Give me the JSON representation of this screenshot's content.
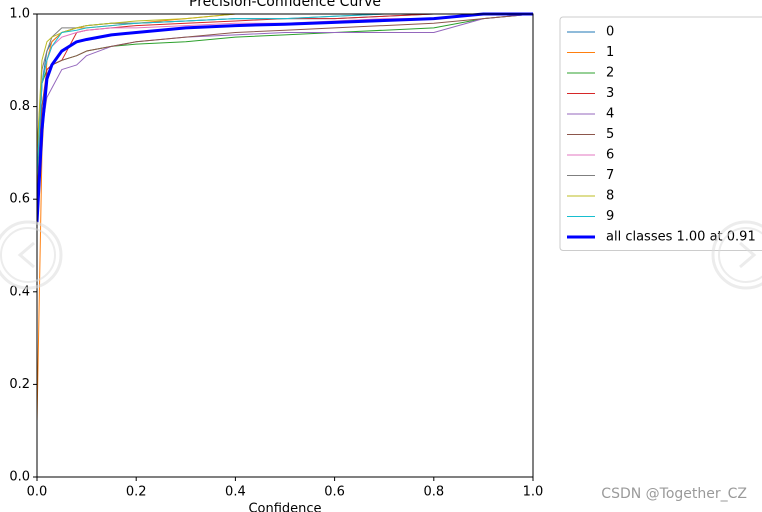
{
  "chart_data": {
    "type": "line",
    "title": "Precision-Confidence Curve",
    "xlabel": "Confidence",
    "x": [
      0,
      0.01,
      0.02,
      0.03,
      0.05,
      0.08,
      0.1,
      0.15,
      0.2,
      0.3,
      0.4,
      0.5,
      0.6,
      0.7,
      0.8,
      0.9,
      1.0
    ],
    "series": [
      {
        "name": "0",
        "color": "#1f77b4",
        "width": 1,
        "values": [
          0.6,
          0.85,
          0.92,
          0.94,
          0.96,
          0.97,
          0.975,
          0.98,
          0.98,
          0.985,
          0.99,
          0.99,
          0.99,
          0.995,
          1,
          1,
          1
        ]
      },
      {
        "name": "1",
        "color": "#ff7f0e",
        "width": 1,
        "values": [
          0.12,
          0.7,
          0.9,
          0.94,
          0.96,
          0.97,
          0.97,
          0.975,
          0.98,
          0.99,
          1,
          1,
          1,
          1,
          1,
          1,
          1
        ]
      },
      {
        "name": "2",
        "color": "#2ca02c",
        "width": 1,
        "values": [
          0.65,
          0.85,
          0.88,
          0.89,
          0.9,
          0.91,
          0.92,
          0.93,
          0.935,
          0.94,
          0.95,
          0.955,
          0.96,
          0.965,
          0.97,
          0.99,
          1
        ]
      },
      {
        "name": "3",
        "color": "#d62728",
        "width": 1,
        "values": [
          0.6,
          0.8,
          0.88,
          0.89,
          0.9,
          0.96,
          0.965,
          0.97,
          0.975,
          0.98,
          0.985,
          0.99,
          0.99,
          0.995,
          1,
          1,
          1
        ]
      },
      {
        "name": "4",
        "color": "#9467bd",
        "width": 1,
        "values": [
          0.55,
          0.75,
          0.82,
          0.84,
          0.88,
          0.89,
          0.91,
          0.93,
          0.94,
          0.95,
          0.955,
          0.96,
          0.96,
          0.96,
          0.96,
          0.99,
          1
        ]
      },
      {
        "name": "5",
        "color": "#8c564b",
        "width": 1,
        "values": [
          0.6,
          0.8,
          0.87,
          0.89,
          0.9,
          0.91,
          0.92,
          0.93,
          0.94,
          0.95,
          0.96,
          0.965,
          0.97,
          0.975,
          0.98,
          0.99,
          1
        ]
      },
      {
        "name": "6",
        "color": "#e377c2",
        "width": 1,
        "values": [
          0.65,
          0.85,
          0.9,
          0.93,
          0.95,
          0.96,
          0.965,
          0.97,
          0.97,
          0.975,
          0.98,
          0.98,
          0.985,
          0.99,
          0.99,
          1,
          1
        ]
      },
      {
        "name": "7",
        "color": "#7f7f7f",
        "width": 1,
        "values": [
          0.7,
          0.88,
          0.92,
          0.95,
          0.97,
          0.97,
          0.975,
          0.98,
          0.98,
          0.985,
          0.99,
          0.99,
          0.995,
          1,
          1,
          1,
          1
        ]
      },
      {
        "name": "8",
        "color": "#bcbd22",
        "width": 1,
        "values": [
          0.7,
          0.9,
          0.94,
          0.95,
          0.96,
          0.97,
          0.975,
          0.98,
          0.985,
          0.99,
          1,
          1,
          1,
          1,
          1,
          1,
          1
        ]
      },
      {
        "name": "9",
        "color": "#17becf",
        "width": 1,
        "values": [
          0.65,
          0.85,
          0.9,
          0.93,
          0.96,
          0.965,
          0.97,
          0.975,
          0.98,
          0.985,
          0.99,
          0.99,
          0.995,
          1,
          1,
          1,
          1
        ]
      },
      {
        "name": "all classes 1.00 at 0.91",
        "color": "#0000ff",
        "width": 3,
        "values": [
          0.55,
          0.75,
          0.86,
          0.89,
          0.92,
          0.94,
          0.945,
          0.955,
          0.96,
          0.97,
          0.975,
          0.978,
          0.982,
          0.986,
          0.99,
          1,
          1
        ]
      }
    ],
    "xlim": [
      0,
      1
    ],
    "ylim": [
      0,
      1
    ],
    "xticks": [
      {
        "value": 0,
        "label": "0.0"
      },
      0.2,
      0.4,
      0.6,
      0.8,
      {
        "value": 1,
        "label": "1.0"
      }
    ],
    "yticks": [
      {
        "value": 0,
        "label": "0.0"
      },
      0.2,
      0.4,
      0.6,
      0.8,
      {
        "value": 1,
        "label": "1.0"
      }
    ],
    "legend": "outside right",
    "watermark": "CSDN @Together_CZ"
  }
}
